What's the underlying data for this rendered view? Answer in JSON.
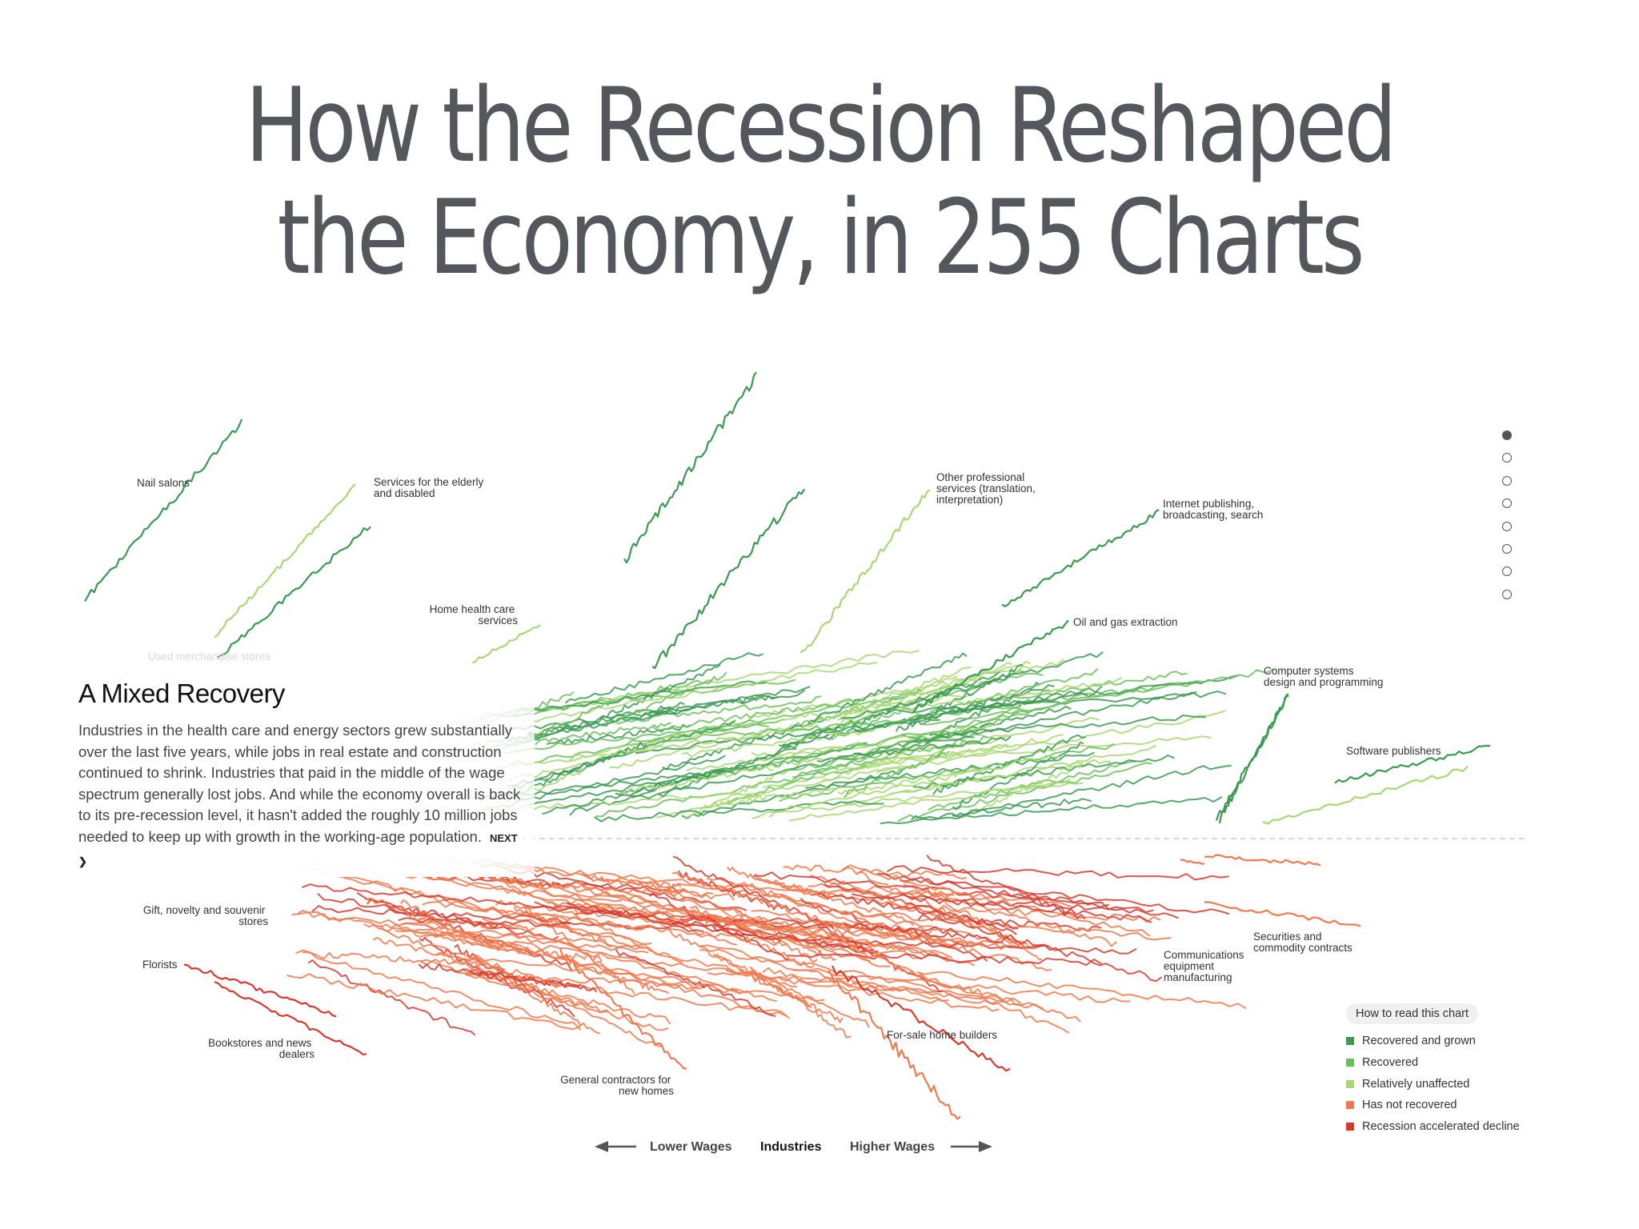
{
  "title": {
    "line1": "How the Recession Reshaped",
    "line2": "the Economy, in 255 Charts"
  },
  "intro": {
    "heading": "A Mixed Recovery",
    "body": "Industries in the health care and energy sectors grew substantially over the last five years, while jobs in real estate and construction continued to shrink. Industries that paid in the middle of the wage spectrum generally lost jobs. And while the economy overall is back to its pre-recession level, it hasn't added the roughly 10 million jobs needed to keep up with growth in the working-age population.",
    "next_label": "NEXT ❯"
  },
  "steps": {
    "count": 8,
    "active": 0
  },
  "legend": {
    "title": "How to read this chart",
    "items": [
      {
        "label": "Recovered and grown",
        "color": "#3a9a52"
      },
      {
        "label": "Recovered",
        "color": "#6cbf5e"
      },
      {
        "label": "Relatively unaffected",
        "color": "#a9d873"
      },
      {
        "label": "Has not recovered",
        "color": "#ef7a4f"
      },
      {
        "label": "Recession accelerated decline",
        "color": "#d63a2f"
      }
    ]
  },
  "chart_data": {
    "type": "line",
    "xlabel_left": "Lower Wages",
    "xlabel_center": "Industries",
    "xlabel_right": "Higher Wages",
    "baseline": "pre-recession employment level",
    "series": [
      {
        "name": "Nail salons",
        "category": "Recovered and grown"
      },
      {
        "name": "Services for the elderly and disabled",
        "category": "Relatively unaffected"
      },
      {
        "name": "Home health care services",
        "category": "Relatively unaffected"
      },
      {
        "name": "Other professional services (translation, interpretation)",
        "category": "Relatively unaffected"
      },
      {
        "name": "Internet publishing, broadcasting, search",
        "category": "Recovered and grown"
      },
      {
        "name": "Oil and gas extraction",
        "category": "Recovered and grown"
      },
      {
        "name": "Computer systems design and programming",
        "category": "Recovered and grown"
      },
      {
        "name": "Software publishers",
        "category": "Recovered and grown"
      },
      {
        "name": "Gift, novelty and souvenir stores",
        "category": "Has not recovered"
      },
      {
        "name": "Florists",
        "category": "Recession accelerated decline"
      },
      {
        "name": "Bookstores and news dealers",
        "category": "Recession accelerated decline"
      },
      {
        "name": "General contractors for new homes",
        "category": "Has not recovered"
      },
      {
        "name": "For-sale home builders",
        "category": "Has not recovered"
      },
      {
        "name": "Communications equipment manufacturing",
        "category": "Recession accelerated decline"
      },
      {
        "name": "Securities and commodity contracts",
        "category": "Has not recovered"
      }
    ],
    "faded_labels": [
      "Used merchandise stores"
    ]
  }
}
